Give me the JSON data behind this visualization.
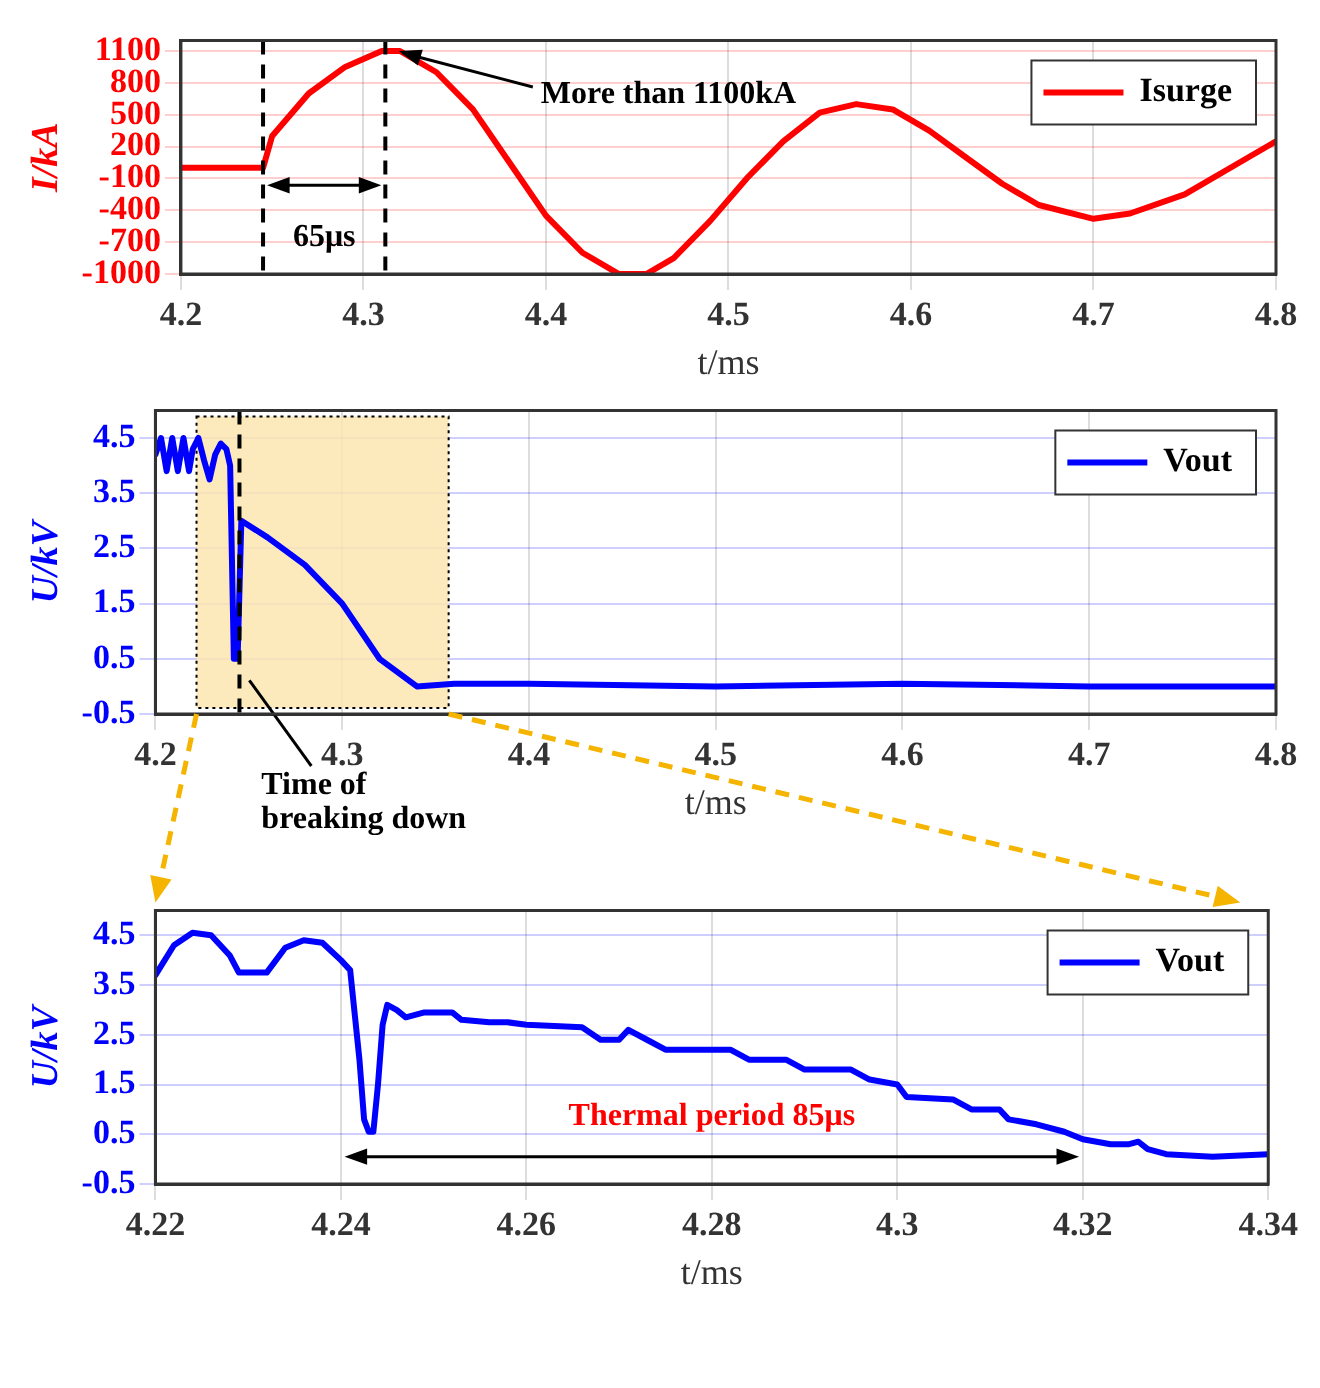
{
  "chart_data": [
    {
      "type": "line",
      "xlabel": "t/ms",
      "ylabel": "I/kA",
      "xlim": [
        4.2,
        4.8
      ],
      "xticks": [
        4.2,
        4.3,
        4.4,
        4.5,
        4.6,
        4.7,
        4.8
      ],
      "ylim": [
        -1000,
        1200
      ],
      "yticks": [
        -1000,
        -700,
        -400,
        -100,
        200,
        500,
        800,
        1100
      ],
      "grid": true,
      "legend": "top right",
      "marker": "none",
      "line_style": "solid",
      "series": [
        {
          "name": "Isurge",
          "color": "#ff0000",
          "x": [
            4.2,
            4.245,
            4.25,
            4.27,
            4.29,
            4.31,
            4.32,
            4.34,
            4.36,
            4.38,
            4.4,
            4.42,
            4.44,
            4.455,
            4.47,
            4.49,
            4.51,
            4.53,
            4.55,
            4.57,
            4.59,
            4.61,
            4.63,
            4.65,
            4.67,
            4.7,
            4.72,
            4.75,
            4.78,
            4.8
          ],
          "values": [
            0,
            0,
            300,
            700,
            950,
            1100,
            1100,
            900,
            550,
            50,
            -450,
            -800,
            -1000,
            -1000,
            -850,
            -500,
            -100,
            250,
            520,
            600,
            550,
            350,
            100,
            -150,
            -350,
            -480,
            -430,
            -250,
            50,
            250
          ]
        }
      ],
      "ref_lines": [
        {
          "axis": "x",
          "value": 4.245,
          "color": "#000000",
          "line_style": "dashed"
        },
        {
          "axis": "x",
          "value": 4.312,
          "color": "#000000",
          "line_style": "dashed"
        }
      ],
      "annotations": [
        {
          "text": "More than 1100kA",
          "x": 4.315,
          "y": 1100
        },
        "65μs"
      ]
    },
    {
      "type": "line",
      "xlabel": "t/ms",
      "ylabel": "U/kV",
      "xlim": [
        4.2,
        4.8
      ],
      "xticks": [
        4.2,
        4.3,
        4.4,
        4.5,
        4.6,
        4.7,
        4.8
      ],
      "ylim": [
        -0.5,
        5
      ],
      "yticks": [
        -0.5,
        0.5,
        1.5,
        2.5,
        3.5,
        4.5
      ],
      "grid": true,
      "legend": "top right",
      "marker": "none",
      "line_style": "solid",
      "series": [
        {
          "name": "Vout",
          "color": "#0000ff",
          "x": [
            4.2,
            4.203,
            4.206,
            4.209,
            4.212,
            4.215,
            4.218,
            4.22,
            4.223,
            4.226,
            4.229,
            4.232,
            4.235,
            4.238,
            4.24,
            4.242,
            4.244,
            4.246,
            4.26,
            4.28,
            4.3,
            4.32,
            4.34,
            4.36,
            4.4,
            4.5,
            4.6,
            4.7,
            4.8
          ],
          "values": [
            4.2,
            4.5,
            3.9,
            4.5,
            3.9,
            4.5,
            3.9,
            4.3,
            4.5,
            4.1,
            3.75,
            4.2,
            4.4,
            4.3,
            4.0,
            0.5,
            0.5,
            3.0,
            2.7,
            2.2,
            1.5,
            0.5,
            0,
            0.05,
            0.05,
            0,
            0.05,
            0,
            0
          ]
        }
      ],
      "bands": [
        {
          "axis": "x",
          "from": 4.222,
          "to": 4.357,
          "color": "#fbe5b0"
        }
      ],
      "ref_lines": [
        {
          "axis": "x",
          "value": 4.245,
          "color": "#000000",
          "line_style": "dashed"
        }
      ],
      "annotations": [
        {
          "text": "Time of breaking down",
          "x": 4.246,
          "y": 0.4
        }
      ]
    },
    {
      "type": "line",
      "xlabel": "t/ms",
      "ylabel": "U/kV",
      "xlim": [
        4.22,
        4.34
      ],
      "xticks": [
        4.22,
        4.24,
        4.26,
        4.28,
        {
          "value": 4.3,
          "label": "4.3"
        },
        4.32,
        4.34
      ],
      "ylim": [
        -0.5,
        5
      ],
      "yticks": [
        -0.5,
        0.5,
        1.5,
        2.5,
        3.5,
        4.5
      ],
      "grid": true,
      "legend": "top right",
      "marker": "none",
      "line_style": "solid",
      "series": [
        {
          "name": "Vout",
          "color": "#0000ff",
          "x": [
            4.22,
            4.222,
            4.224,
            4.226,
            4.228,
            4.229,
            4.232,
            4.234,
            4.236,
            4.238,
            4.24,
            4.241,
            4.242,
            4.2425,
            4.243,
            4.2435,
            4.244,
            4.2445,
            4.245,
            4.246,
            4.247,
            4.249,
            4.252,
            4.253,
            4.256,
            4.258,
            4.26,
            4.266,
            4.268,
            4.27,
            4.271,
            4.273,
            4.275,
            4.282,
            4.284,
            4.288,
            4.29,
            4.295,
            4.297,
            4.3,
            4.301,
            4.306,
            4.308,
            4.311,
            4.312,
            4.315,
            4.318,
            4.32,
            4.323,
            4.325,
            4.326,
            4.327,
            4.329,
            4.334,
            4.34
          ],
          "values": [
            3.7,
            4.3,
            4.55,
            4.5,
            4.1,
            3.75,
            3.75,
            4.25,
            4.4,
            4.35,
            4.0,
            3.8,
            2.0,
            0.8,
            0.55,
            0.55,
            1.5,
            2.7,
            3.1,
            3.0,
            2.85,
            2.95,
            2.95,
            2.8,
            2.75,
            2.75,
            2.7,
            2.65,
            2.4,
            2.4,
            2.6,
            2.4,
            2.2,
            2.2,
            2.0,
            2.0,
            1.8,
            1.8,
            1.6,
            1.5,
            1.25,
            1.2,
            1.0,
            1.0,
            0.8,
            0.7,
            0.55,
            0.4,
            0.3,
            0.3,
            0.35,
            0.2,
            0.1,
            0.05,
            0.1
          ]
        }
      ],
      "annotations": [
        "Thermal period 85μs"
      ]
    }
  ]
}
